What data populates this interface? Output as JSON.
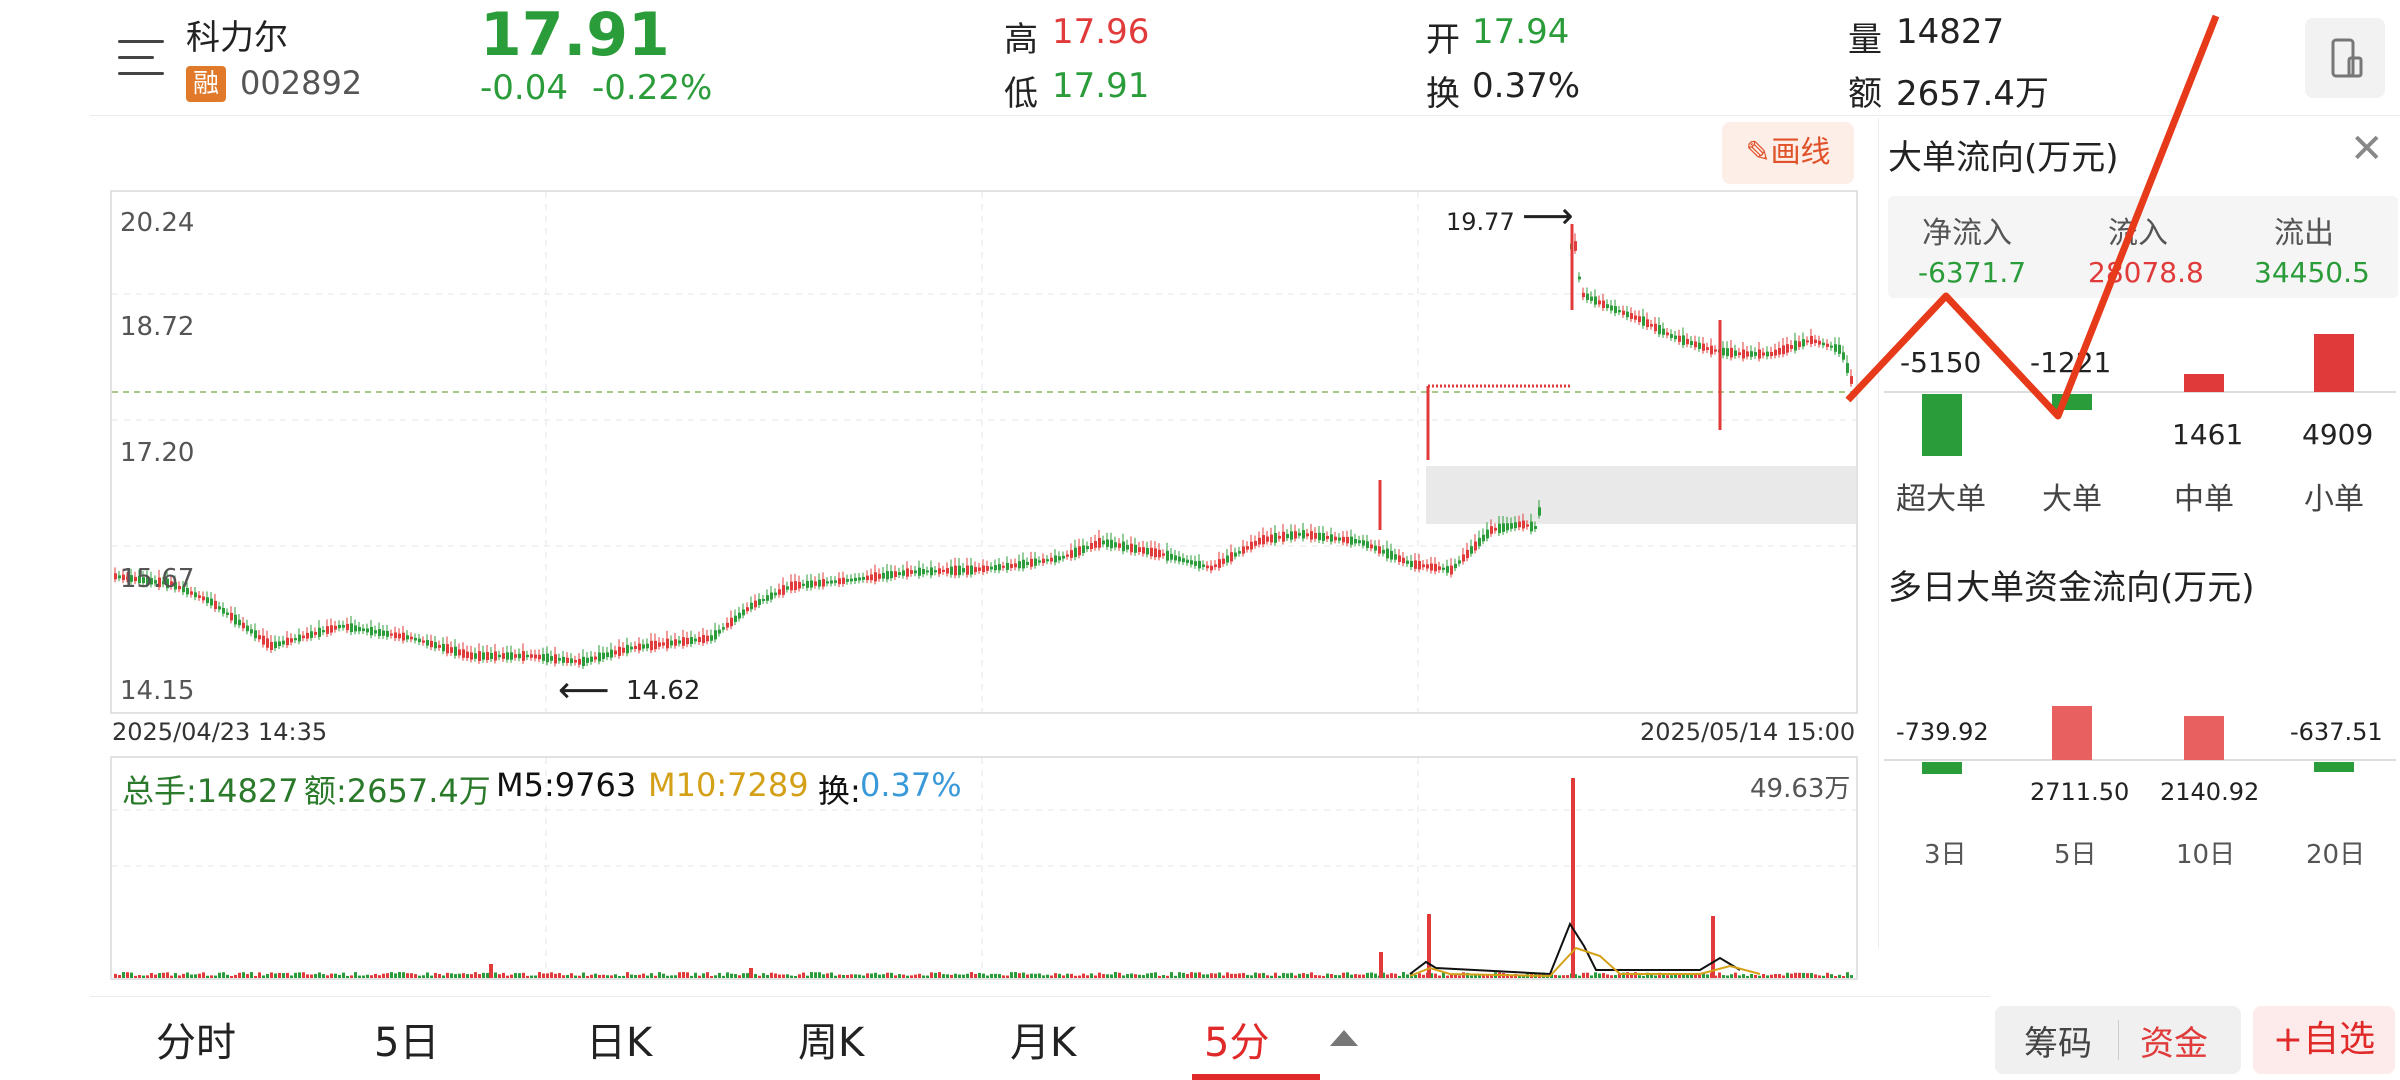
{
  "header": {
    "stock_name": "科力尔",
    "margin_badge": "融",
    "stock_code": "002892",
    "price": "17.91",
    "change": "-0.04",
    "change_pct": "-0.22%",
    "high_label": "高",
    "high_value": "17.96",
    "low_label": "低",
    "low_value": "17.91",
    "open_label": "开",
    "open_value": "17.94",
    "turnover_label": "换",
    "turnover_value": "0.37%",
    "volume_label": "量",
    "volume_value": "14827",
    "amount_label": "额",
    "amount_value": "2657.4万",
    "menu_icon": "menu-icon",
    "device_icon": "phone-landscape-icon"
  },
  "toolbar": {
    "draw_label": "画线",
    "draw_icon": "pencil-icon"
  },
  "kline": {
    "y_ticks": [
      "20.24",
      "18.72",
      "17.20",
      "15.67",
      "14.15"
    ],
    "start_date": "2025/04/23 14:35",
    "end_date": "2025/05/14 15:00",
    "max_label": "19.77",
    "min_label": "14.62"
  },
  "volume_panel": {
    "total_label": "总手:14827",
    "amount_label": "额:2657.4万",
    "m5_label": "M5:9763",
    "m10_label": "M10:7289",
    "turnover_prefix": "换:",
    "turnover_value": "0.37%",
    "max_label": "49.63万"
  },
  "side_panel": {
    "title": "大单流向(万元)",
    "close_icon": "close-icon",
    "net_in_label": "净流入",
    "net_in_value": "-6371.7",
    "in_label": "流入",
    "in_value": "28078.8",
    "out_label": "流出",
    "out_value": "34450.5",
    "bars": [
      {
        "label": "超大单",
        "value": "-5150"
      },
      {
        "label": "大单",
        "value": "-1221"
      },
      {
        "label": "中单",
        "value": "1461"
      },
      {
        "label": "小单",
        "value": "4909"
      }
    ],
    "multi_title": "多日大单资金流向(万元)",
    "multi_bars": [
      {
        "label": "3日",
        "value": "-739.92"
      },
      {
        "label": "5日",
        "value": "2711.50"
      },
      {
        "label": "10日",
        "value": "2140.92"
      },
      {
        "label": "20日",
        "value": "-637.51"
      }
    ]
  },
  "tabs": [
    {
      "label": "分时"
    },
    {
      "label": "5日"
    },
    {
      "label": "日K"
    },
    {
      "label": "周K"
    },
    {
      "label": "月K"
    },
    {
      "label": "5分"
    }
  ],
  "bottom": {
    "chips_label": "筹码",
    "funds_label": "资金",
    "add_fav_label": "+自选",
    "more_icon": "triangle-up-icon"
  },
  "colors": {
    "up": "#e03a3a",
    "down": "#2b9c3a",
    "accent": "#e02a2a",
    "m10": "#d4a017",
    "turnover": "#3a9ad9"
  }
}
